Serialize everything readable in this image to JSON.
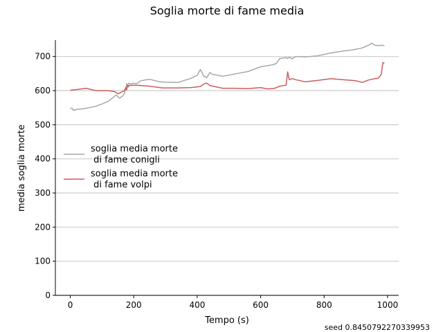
{
  "chart_data": {
    "type": "line",
    "title": "Soglia morte di fame media",
    "xlabel": "Tempo (s)",
    "ylabel": "media soglia morte",
    "xlim": [
      -47,
      1035
    ],
    "ylim": [
      0,
      748
    ],
    "xticks": [
      0,
      200,
      400,
      600,
      800,
      1000
    ],
    "yticks": [
      0,
      100,
      200,
      300,
      400,
      500,
      600,
      700
    ],
    "grid": "horizontal",
    "legend_position": "center-left",
    "footnote": "seed 0.8450792270339953",
    "series": [
      {
        "name": "soglia media morte\n di fame conigli",
        "color": "#a6a6a6",
        "x": [
          0,
          5,
          10,
          20,
          40,
          60,
          80,
          100,
          120,
          135,
          145,
          155,
          165,
          170,
          175,
          178,
          180,
          185,
          190,
          200,
          210,
          220,
          240,
          250,
          260,
          280,
          300,
          340,
          380,
          400,
          410,
          420,
          430,
          440,
          450,
          460,
          480,
          520,
          560,
          600,
          620,
          640,
          650,
          660,
          680,
          685,
          690,
          700,
          710,
          720,
          740,
          780,
          800,
          820,
          840,
          860,
          880,
          900,
          920,
          940,
          950,
          960,
          970,
          980,
          990
        ],
        "y": [
          548,
          549,
          542,
          545,
          547,
          550,
          554,
          561,
          569,
          580,
          587,
          578,
          584,
          591,
          606,
          621,
          614,
          622,
          619,
          622,
          620,
          628,
          632,
          633,
          631,
          626,
          625,
          624,
          636,
          645,
          662,
          643,
          638,
          653,
          647,
          646,
          642,
          649,
          656,
          670,
          673,
          676,
          680,
          694,
          697,
          694,
          698,
          693,
          700,
          700,
          699,
          702,
          706,
          710,
          713,
          716,
          718,
          721,
          725,
          733,
          739,
          733,
          732,
          733,
          732
        ]
      },
      {
        "name": "soglia media morte\n di fame volpi",
        "color": "#cd5c5c",
        "x": [
          0,
          20,
          50,
          80,
          120,
          140,
          150,
          160,
          170,
          175,
          178,
          180,
          183,
          185,
          190,
          200,
          220,
          250,
          290,
          340,
          380,
          400,
          410,
          420,
          430,
          440,
          480,
          520,
          560,
          600,
          620,
          640,
          650,
          660,
          680,
          685,
          690,
          700,
          710,
          740,
          780,
          820,
          860,
          900,
          920,
          940,
          960,
          970,
          980,
          985,
          990
        ],
        "y": [
          601,
          603,
          607,
          600,
          600,
          597,
          591,
          595,
          600,
          609,
          602,
          615,
          611,
          615,
          615,
          616,
          615,
          613,
          608,
          608,
          609,
          611,
          612,
          619,
          622,
          615,
          607,
          607,
          606,
          609,
          605,
          606,
          609,
          613,
          616,
          655,
          632,
          635,
          632,
          626,
          630,
          635,
          632,
          629,
          624,
          631,
          635,
          636,
          648,
          682,
          681
        ]
      }
    ]
  }
}
